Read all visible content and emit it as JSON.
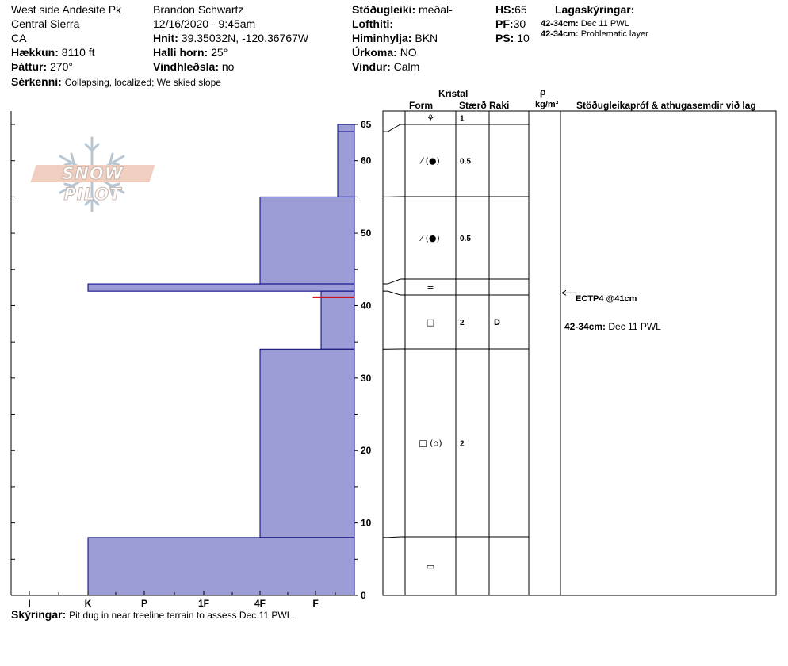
{
  "header": {
    "location": "West side Andesite Pk",
    "range": "Central Sierra",
    "state": "CA",
    "elevation_label": "Hækkun:",
    "elevation": "8110 ft",
    "aspect_label": "Þáttur:",
    "aspect": "270°",
    "features_label": "Sérkenni:",
    "features": "Collapsing, localized;  We skied slope",
    "observer": "Brandon Schwartz",
    "datetime": "12/16/2020 - 9:45am",
    "coords_label": "Hnit:",
    "coords": "39.35032N, -120.36767W",
    "slope_label": "Halli horn:",
    "slope": "25°",
    "wind_loading_label": "Vindhleðsla:",
    "wind_loading": "no",
    "stability_label": "Stöðugleiki:",
    "stability": "meðal-",
    "air_temp_label": "Lofthiti:",
    "air_temp": "",
    "sky_label": "Himinhylja:",
    "sky": "BKN",
    "precip_label": "Úrkoma:",
    "precip": "NO",
    "wind_label": "Vindur:",
    "wind": "Calm",
    "hs_label": "HS:",
    "hs": "65",
    "pf_label": "PF:",
    "pf": "30",
    "ps_label": "PS:",
    "ps": "10",
    "layer_notes_title": "Lagaskýringar:",
    "layer_notes": [
      {
        "range": "42-34cm:",
        "text": "Dec 11 PWL"
      },
      {
        "range": "42-34cm:",
        "text": "Problematic layer"
      }
    ]
  },
  "logo_text": "SNOW PILOT",
  "columns": {
    "kristal": "Kristal",
    "form": "Form",
    "size": "Stærð",
    "moisture": "Raki",
    "rho": "ρ",
    "density_unit": "kg/m³",
    "tests": "Stöðugleikapróf & athugasemdir við lag"
  },
  "hardness_ticks": [
    "I",
    "K",
    "P",
    "1F",
    "4F",
    "F"
  ],
  "height_ticks": [
    "65",
    "60",
    "50",
    "40",
    "30",
    "20",
    "10",
    "0"
  ],
  "layers": [
    {
      "top": 65,
      "bottom": 64,
      "hardness": 5.4,
      "form_symbol": "⚘",
      "size": "1",
      "moisture": ""
    },
    {
      "top": 64,
      "bottom": 55,
      "hardness": 5.4,
      "form_symbol": "⁄ (●)",
      "size": "0.5",
      "moisture": ""
    },
    {
      "top": 55,
      "bottom": 43,
      "hardness": 4.0,
      "form_symbol": "⁄ (●)",
      "size": "0.5",
      "moisture": ""
    },
    {
      "top": 43,
      "bottom": 42,
      "hardness": 1.0,
      "form_symbol": "=",
      "size": "",
      "moisture": ""
    },
    {
      "top": 42,
      "bottom": 34,
      "hardness": 5.1,
      "form_symbol": "□",
      "size": "2",
      "moisture": "D"
    },
    {
      "top": 34,
      "bottom": 8,
      "hardness": 4.0,
      "form_symbol": "□ (⌂)",
      "size": "2",
      "moisture": ""
    },
    {
      "top": 8,
      "bottom": 0,
      "hardness": 1.0,
      "form_symbol": "▭",
      "size": "",
      "moisture": ""
    }
  ],
  "failure_layer": {
    "height": 41
  },
  "test_result": "ECTP4 @41cm",
  "layer_comment": {
    "range": "42-34cm:",
    "text": "Dec 11 PWL"
  },
  "notes_label": "Skýringar:",
  "notes": "Pit dug in near treeline terrain to assess Dec 11 PWL.",
  "colors": {
    "fill": "#9c9cd6",
    "outline": "#00007f",
    "failure": "#cc0000"
  }
}
